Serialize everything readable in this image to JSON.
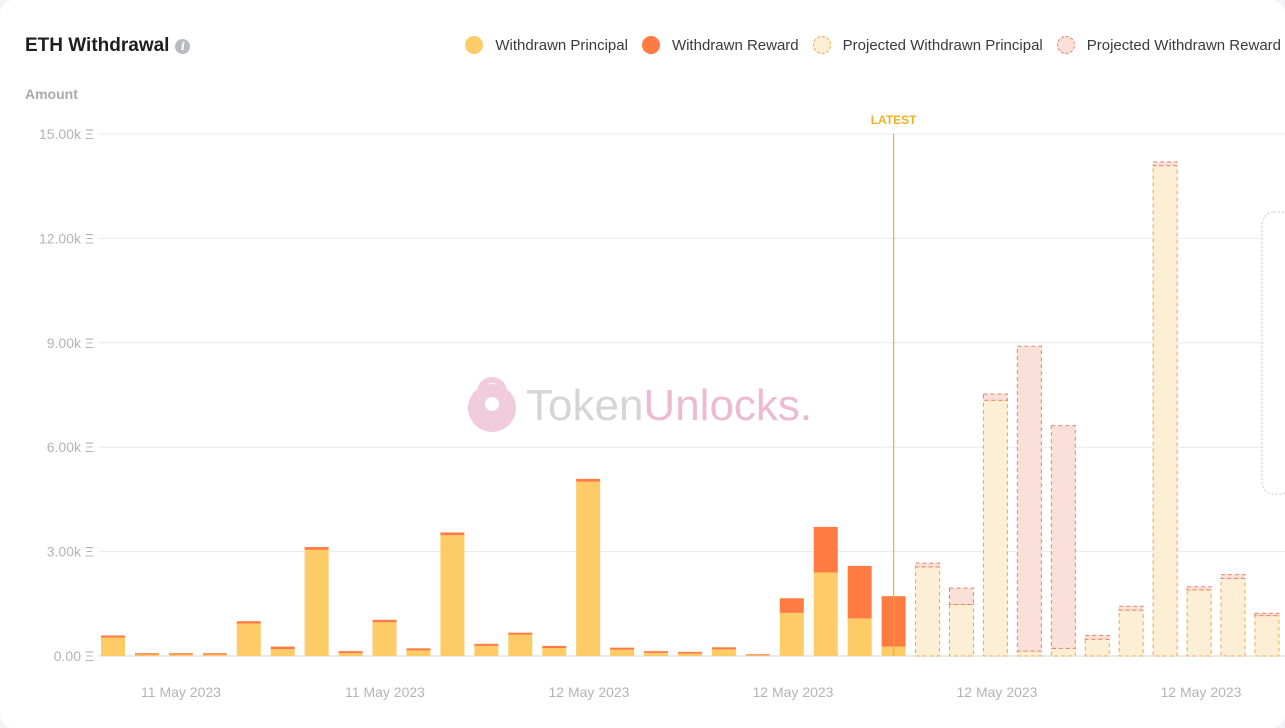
{
  "header": {
    "title": "ETH Withdrawal",
    "info_icon": "info-icon"
  },
  "legend": [
    {
      "name": "Withdrawn Principal",
      "color": "#fdcc66"
    },
    {
      "name": "Withdrawn Reward",
      "color": "#ff7b42"
    },
    {
      "name": "Projected Withdrawn Principal",
      "color": "#fdefd6"
    },
    {
      "name": "Projected Withdrawn Reward",
      "color": "#fbe0da"
    }
  ],
  "watermark": "TokenUnlocks.",
  "chart_data": {
    "type": "bar",
    "stacked": true,
    "ylabel": "Amount",
    "ylim": [
      0,
      15000
    ],
    "yticks": [
      "0.00 Ξ",
      "3.00k Ξ",
      "6.00k Ξ",
      "9.00k Ξ",
      "12.00k Ξ",
      "15.00k Ξ"
    ],
    "xticks": [
      "11 May 2023",
      "11 May 2023",
      "12 May 2023",
      "12 May 2023",
      "12 May 2023",
      "12 May 2023"
    ],
    "grid": true,
    "legend_position": "top-right",
    "marker": {
      "label": "LATEST",
      "after_bar": 24
    },
    "bars": [
      {
        "principal": 530,
        "reward": 60,
        "projected": false
      },
      {
        "principal": 40,
        "reward": 40,
        "projected": false
      },
      {
        "principal": 40,
        "reward": 40,
        "projected": false
      },
      {
        "principal": 40,
        "reward": 40,
        "projected": false
      },
      {
        "principal": 930,
        "reward": 70,
        "projected": false
      },
      {
        "principal": 200,
        "reward": 70,
        "projected": false
      },
      {
        "principal": 3050,
        "reward": 80,
        "projected": false
      },
      {
        "principal": 80,
        "reward": 60,
        "projected": false
      },
      {
        "principal": 970,
        "reward": 70,
        "projected": false
      },
      {
        "principal": 160,
        "reward": 60,
        "projected": false
      },
      {
        "principal": 3470,
        "reward": 80,
        "projected": false
      },
      {
        "principal": 290,
        "reward": 60,
        "projected": false
      },
      {
        "principal": 610,
        "reward": 60,
        "projected": false
      },
      {
        "principal": 230,
        "reward": 60,
        "projected": false
      },
      {
        "principal": 5010,
        "reward": 80,
        "projected": false
      },
      {
        "principal": 180,
        "reward": 60,
        "projected": false
      },
      {
        "principal": 90,
        "reward": 50,
        "projected": false
      },
      {
        "principal": 70,
        "reward": 50,
        "projected": false
      },
      {
        "principal": 190,
        "reward": 60,
        "projected": false
      },
      {
        "principal": 20,
        "reward": 30,
        "projected": false
      },
      {
        "principal": 1240,
        "reward": 420,
        "projected": false
      },
      {
        "principal": 2400,
        "reward": 1310,
        "projected": false
      },
      {
        "principal": 1080,
        "reward": 1510,
        "projected": false
      },
      {
        "principal": 270,
        "reward": 1450,
        "projected": false
      },
      {
        "principal": 2560,
        "reward": 110,
        "projected": true
      },
      {
        "principal": 1480,
        "reward": 470,
        "projected": true
      },
      {
        "principal": 7350,
        "reward": 180,
        "projected": true
      },
      {
        "principal": 140,
        "reward": 8760,
        "projected": true
      },
      {
        "principal": 220,
        "reward": 6400,
        "projected": true
      },
      {
        "principal": 480,
        "reward": 110,
        "projected": true
      },
      {
        "principal": 1320,
        "reward": 110,
        "projected": true
      },
      {
        "principal": 14090,
        "reward": 110,
        "projected": true
      },
      {
        "principal": 1900,
        "reward": 90,
        "projected": true
      },
      {
        "principal": 2230,
        "reward": 110,
        "projected": true
      },
      {
        "principal": 1160,
        "reward": 70,
        "projected": true
      }
    ]
  }
}
